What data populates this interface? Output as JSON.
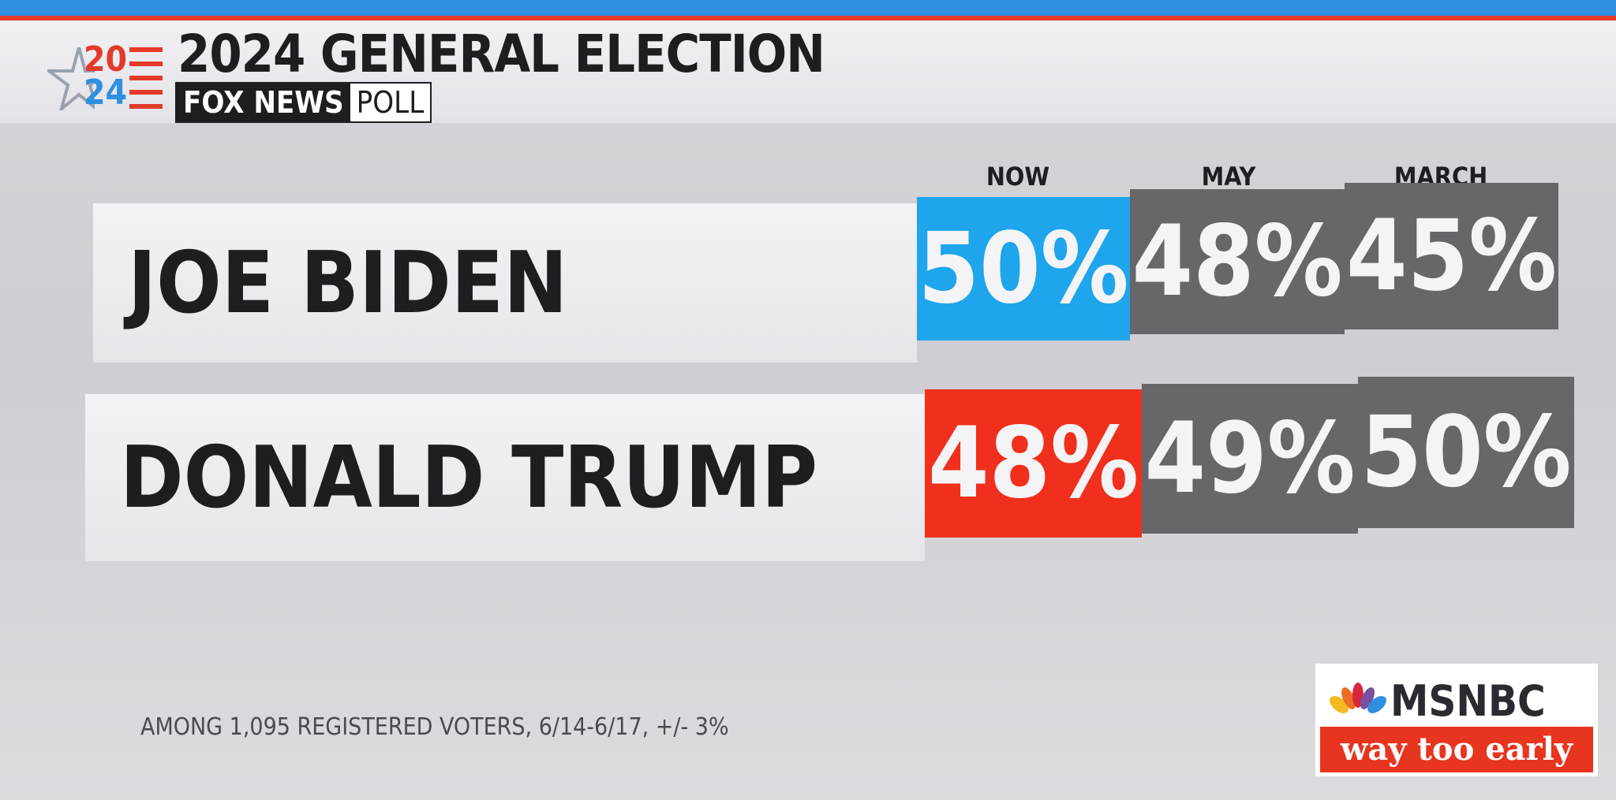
{
  "header": {
    "logo_top": "20",
    "logo_bottom": "24",
    "title": "2024 GENERAL ELECTION",
    "brand": "FOX NEWS",
    "brand_suffix": "POLL"
  },
  "table": {
    "columns": [
      "NOW",
      "MAY",
      "MARCH"
    ],
    "rows": [
      {
        "name": "JOE BIDEN",
        "values": [
          "50%",
          "48%",
          "45%"
        ]
      },
      {
        "name": "DONALD TRUMP",
        "values": [
          "48%",
          "49%",
          "50%"
        ]
      }
    ]
  },
  "footnote": "AMONG 1,095 REGISTERED VOTERS, 6/14-6/17, +/- 3%",
  "network": {
    "name": "MSNBC",
    "show": "way too early"
  }
}
